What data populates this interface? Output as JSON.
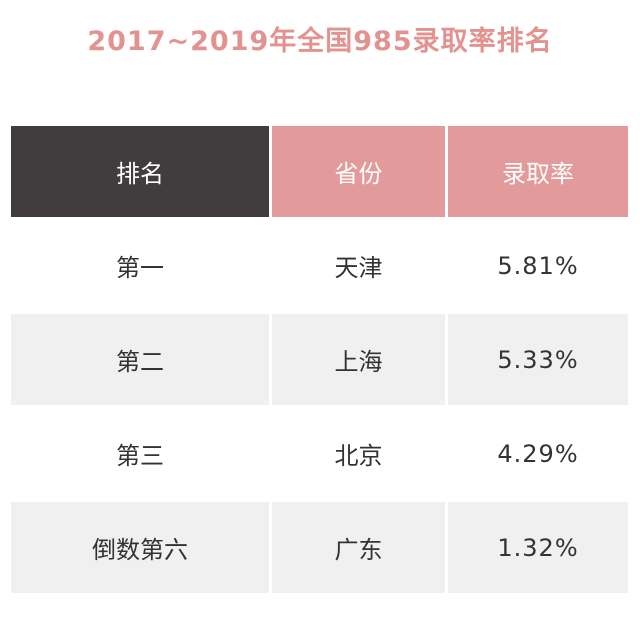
{
  "title": "2017~2019年全国985录取率排名",
  "headers": {
    "rank": "排名",
    "province": "省份",
    "rate": "录取率"
  },
  "rows": [
    {
      "rank": "第一",
      "province": "天津",
      "rate": "5.81%"
    },
    {
      "rank": "第二",
      "province": "上海",
      "rate": "5.33%"
    },
    {
      "rank": "第三",
      "province": "北京",
      "rate": "4.29%"
    },
    {
      "rank": "倒数第六",
      "province": "广东",
      "rate": "1.32%"
    }
  ],
  "colors": {
    "title": "#e3938f",
    "header_dark": "#413d3e",
    "header_pink": "#e29b9a",
    "row_alt": "#f1f0f1"
  }
}
